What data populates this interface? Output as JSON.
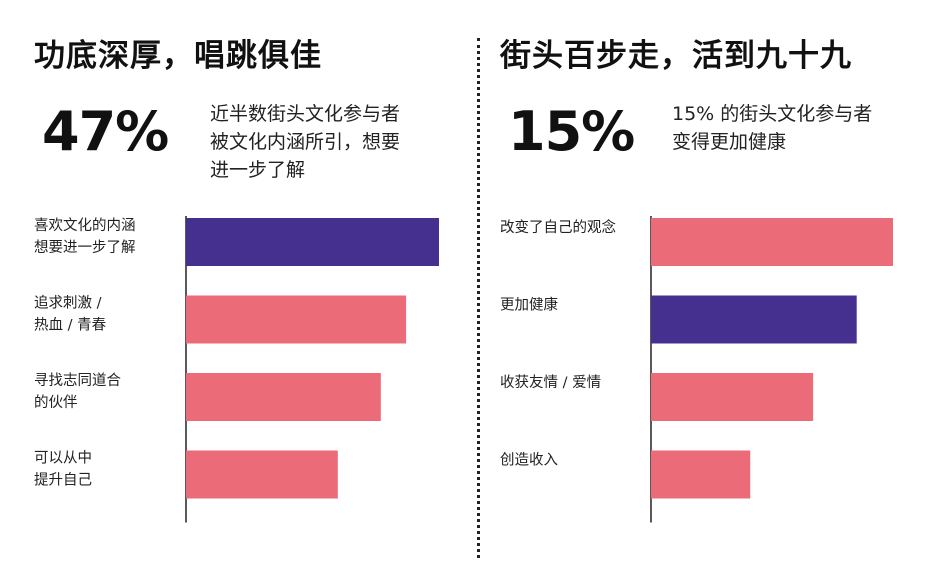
{
  "colors": {
    "highlight": "#45308F",
    "normal": "#EB6B78",
    "axis": "#222222"
  },
  "left": {
    "title": "功底深厚，唱跳俱佳",
    "stat": "47%",
    "note": "近半数街头文化参与者\n被文化内涵所引，想要\n进一步了解"
  },
  "right": {
    "title": "街头百步走，活到九十九",
    "stat": "15%",
    "note": "15% 的街头文化参与者\n变得更加健康"
  },
  "chart_data": [
    {
      "type": "bar",
      "orientation": "horizontal",
      "categories": [
        "喜欢文化的内涵\n想要进一步了解",
        "追求刺激 /\n热血 / 青春",
        "寻找志同道合\n的伙伴",
        "可以从中\n提升自己"
      ],
      "values": [
        100,
        87,
        77,
        60
      ],
      "highlight_index": 0,
      "xlim": [
        0,
        100
      ],
      "grid": false
    },
    {
      "type": "bar",
      "orientation": "horizontal",
      "categories": [
        "改变了自己的观念",
        "更加健康",
        "收获友情 / 爱情",
        "创造收入"
      ],
      "values": [
        100,
        85,
        67,
        41
      ],
      "highlight_index": 1,
      "xlim": [
        0,
        100
      ],
      "grid": false
    }
  ]
}
